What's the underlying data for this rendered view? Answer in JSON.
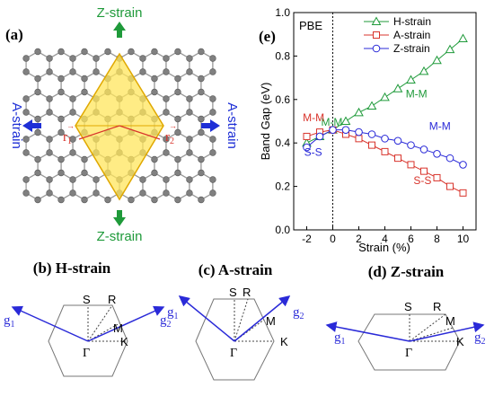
{
  "panel_a": {
    "label": "(a)",
    "arrows": {
      "top": "Z-strain",
      "bottom": "Z-strain",
      "left": "A-strain",
      "right": "A-strain"
    },
    "vectors": {
      "r1": "r",
      "r1_sub": "1",
      "r2": "r",
      "r2_sub": "2"
    },
    "colors": {
      "z_arrow": "#1f9a3a",
      "a_arrow": "#1e2fd6",
      "cell_fill": "#ffe65c",
      "cell_stroke": "#e0a800",
      "atom": "#808080"
    }
  },
  "chart_data": {
    "type": "line",
    "panel_label": "(e)",
    "annotation": "PBE",
    "xlabel": "Strain (%)",
    "ylabel": "Band Gap (eV)",
    "xlim": [
      -3,
      11
    ],
    "ylim": [
      0.0,
      1.0
    ],
    "xticks": [
      -2,
      0,
      2,
      4,
      6,
      8,
      10
    ],
    "yticks": [
      0.0,
      0.2,
      0.4,
      0.6,
      0.8,
      1.0
    ],
    "xtick_labels": [
      "-2",
      "0",
      "2",
      "4",
      "6",
      "8",
      "10"
    ],
    "ytick_labels": [
      "0.0",
      "0.2",
      "0.4",
      "0.6",
      "0.8",
      "1.0"
    ],
    "vline_x": 0,
    "x": [
      -2,
      -1,
      0,
      1,
      2,
      3,
      4,
      5,
      6,
      7,
      8,
      9,
      10
    ],
    "series": [
      {
        "name": "H-strain",
        "marker": "triangle",
        "color": "#1f9a3a",
        "values": [
          0.4,
          0.43,
          0.46,
          0.5,
          0.54,
          0.57,
          0.61,
          0.65,
          0.69,
          0.73,
          0.78,
          0.83,
          0.88
        ]
      },
      {
        "name": "A-strain",
        "marker": "square",
        "color": "#d8342c",
        "values": [
          0.43,
          0.45,
          0.46,
          0.44,
          0.42,
          0.39,
          0.36,
          0.33,
          0.3,
          0.27,
          0.24,
          0.2,
          0.17
        ]
      },
      {
        "name": "Z-strain",
        "marker": "circle",
        "color": "#2a2ad8",
        "values": [
          0.38,
          0.43,
          0.46,
          0.46,
          0.45,
          0.44,
          0.42,
          0.41,
          0.39,
          0.37,
          0.35,
          0.33,
          0.3
        ]
      }
    ],
    "annotations": [
      {
        "text": "M-M",
        "x": -0.9,
        "y": 0.48,
        "color": "#1f9a3a"
      },
      {
        "text": "M-M",
        "x": 5.6,
        "y": 0.61,
        "color": "#1f9a3a"
      },
      {
        "text": "M-M",
        "x": -2.3,
        "y": 0.5,
        "color": "#d8342c"
      },
      {
        "text": "M-M",
        "x": 7.4,
        "y": 0.46,
        "color": "#2a2ad8"
      },
      {
        "text": "S-S",
        "x": -2.2,
        "y": 0.34,
        "color": "#2a2ad8"
      },
      {
        "text": "S-S",
        "x": 6.2,
        "y": 0.21,
        "color": "#d8342c"
      }
    ],
    "legend_position": "top-right"
  },
  "bz_panels": [
    {
      "title": "(b) H-strain",
      "S": "S",
      "R": "R",
      "M": "M",
      "K": "K",
      "G": "Γ",
      "g1": "g",
      "g1_sub": "1",
      "g2": "g",
      "g2_sub": "2"
    },
    {
      "title": "(c) A-strain",
      "S": "S",
      "R": "R",
      "M": "M",
      "K": "K",
      "G": "Γ",
      "g1": "g",
      "g1_sub": "1",
      "g2": "g",
      "g2_sub": "2"
    },
    {
      "title": "(d) Z-strain",
      "S": "S",
      "R": "R",
      "M": "M",
      "K": "K",
      "G": "Γ",
      "g1": "g",
      "g1_sub": "1",
      "g2": "g",
      "g2_sub": "2"
    }
  ]
}
